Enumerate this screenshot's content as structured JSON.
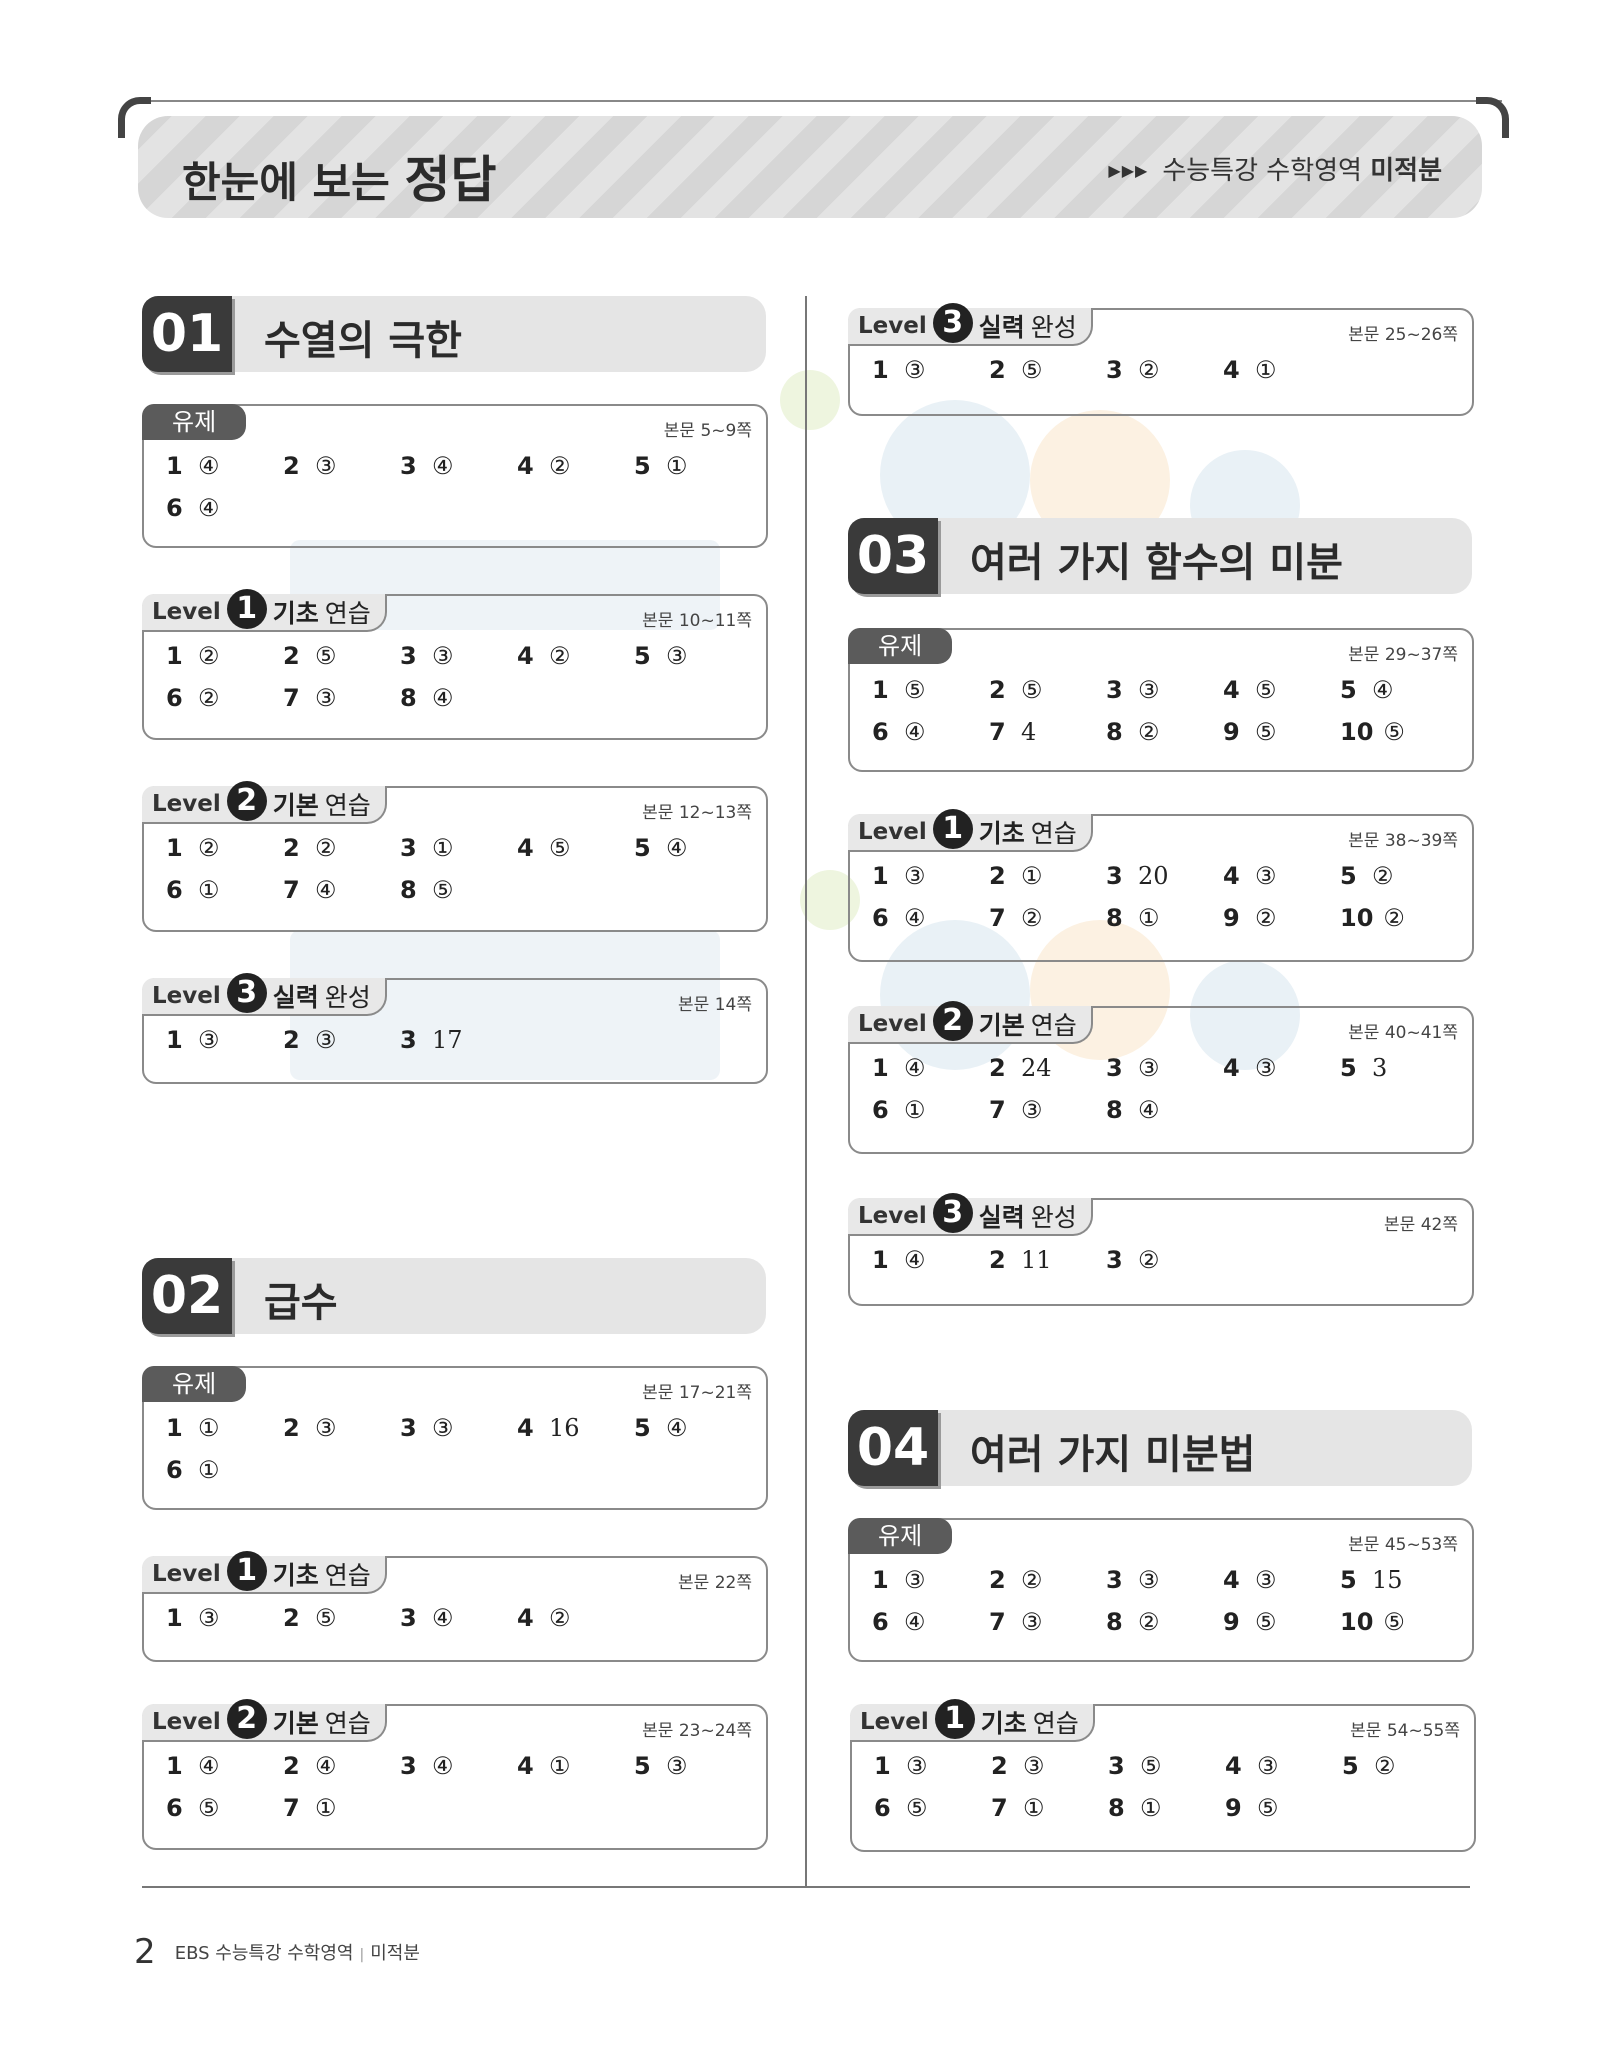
{
  "header": {
    "title_prefix": "한눈에 보는",
    "title_main": "정답",
    "subtitle_prefix": "수능특강 수학영역",
    "subtitle_main": "미적분"
  },
  "chapters": [
    {
      "num": "01",
      "title": "수열의 극한"
    },
    {
      "num": "02",
      "title": "급수"
    },
    {
      "num": "03",
      "title": "여러 가지 함수의 미분"
    },
    {
      "num": "04",
      "title": "여러 가지 미분법"
    }
  ],
  "labels": {
    "yuje": "유제",
    "level": "Level",
    "basic_a": "기초",
    "basic_b": "연습",
    "core_a": "기본",
    "core_b": "연습",
    "adv_a": "실력",
    "adv_b": "완성"
  },
  "boxes": [
    {
      "chapter": "01",
      "kind": "유제",
      "pages": "본문 5~9쪽",
      "answers": [
        [
          "1",
          "④"
        ],
        [
          "2",
          "③"
        ],
        [
          "3",
          "④"
        ],
        [
          "4",
          "②"
        ],
        [
          "5",
          "①"
        ],
        [
          "6",
          "④"
        ]
      ]
    },
    {
      "chapter": "01",
      "kind": "Level 1",
      "pages": "본문 10~11쪽",
      "answers": [
        [
          "1",
          "②"
        ],
        [
          "2",
          "⑤"
        ],
        [
          "3",
          "③"
        ],
        [
          "4",
          "②"
        ],
        [
          "5",
          "③"
        ],
        [
          "6",
          "②"
        ],
        [
          "7",
          "③"
        ],
        [
          "8",
          "④"
        ]
      ]
    },
    {
      "chapter": "01",
      "kind": "Level 2",
      "pages": "본문 12~13쪽",
      "answers": [
        [
          "1",
          "②"
        ],
        [
          "2",
          "②"
        ],
        [
          "3",
          "①"
        ],
        [
          "4",
          "⑤"
        ],
        [
          "5",
          "④"
        ],
        [
          "6",
          "①"
        ],
        [
          "7",
          "④"
        ],
        [
          "8",
          "⑤"
        ]
      ]
    },
    {
      "chapter": "01",
      "kind": "Level 3",
      "pages": "본문 14쪽",
      "answers": [
        [
          "1",
          "③"
        ],
        [
          "2",
          "③"
        ],
        [
          "3",
          "17"
        ]
      ]
    },
    {
      "chapter": "02",
      "kind": "유제",
      "pages": "본문 17~21쪽",
      "answers": [
        [
          "1",
          "①"
        ],
        [
          "2",
          "③"
        ],
        [
          "3",
          "③"
        ],
        [
          "4",
          "16"
        ],
        [
          "5",
          "④"
        ],
        [
          "6",
          "①"
        ]
      ]
    },
    {
      "chapter": "02",
      "kind": "Level 1",
      "pages": "본문 22쪽",
      "answers": [
        [
          "1",
          "③"
        ],
        [
          "2",
          "⑤"
        ],
        [
          "3",
          "④"
        ],
        [
          "4",
          "②"
        ]
      ]
    },
    {
      "chapter": "02",
      "kind": "Level 2",
      "pages": "본문 23~24쪽",
      "answers": [
        [
          "1",
          "④"
        ],
        [
          "2",
          "④"
        ],
        [
          "3",
          "④"
        ],
        [
          "4",
          "①"
        ],
        [
          "5",
          "③"
        ],
        [
          "6",
          "⑤"
        ],
        [
          "7",
          "①"
        ]
      ]
    },
    {
      "chapter": "02",
      "kind": "Level 3",
      "pages": "본문 25~26쪽",
      "answers": [
        [
          "1",
          "③"
        ],
        [
          "2",
          "⑤"
        ],
        [
          "3",
          "②"
        ],
        [
          "4",
          "①"
        ]
      ]
    },
    {
      "chapter": "03",
      "kind": "유제",
      "pages": "본문 29~37쪽",
      "answers": [
        [
          "1",
          "⑤"
        ],
        [
          "2",
          "⑤"
        ],
        [
          "3",
          "③"
        ],
        [
          "4",
          "⑤"
        ],
        [
          "5",
          "④"
        ],
        [
          "6",
          "④"
        ],
        [
          "7",
          "4"
        ],
        [
          "8",
          "②"
        ],
        [
          "9",
          "⑤"
        ],
        [
          "10",
          "⑤"
        ]
      ]
    },
    {
      "chapter": "03",
      "kind": "Level 1",
      "pages": "본문 38~39쪽",
      "answers": [
        [
          "1",
          "③"
        ],
        [
          "2",
          "①"
        ],
        [
          "3",
          "20"
        ],
        [
          "4",
          "③"
        ],
        [
          "5",
          "②"
        ],
        [
          "6",
          "④"
        ],
        [
          "7",
          "②"
        ],
        [
          "8",
          "①"
        ],
        [
          "9",
          "②"
        ],
        [
          "10",
          "②"
        ]
      ]
    },
    {
      "chapter": "03",
      "kind": "Level 2",
      "pages": "본문 40~41쪽",
      "answers": [
        [
          "1",
          "④"
        ],
        [
          "2",
          "24"
        ],
        [
          "3",
          "③"
        ],
        [
          "4",
          "③"
        ],
        [
          "5",
          "3"
        ],
        [
          "6",
          "①"
        ],
        [
          "7",
          "③"
        ],
        [
          "8",
          "④"
        ]
      ]
    },
    {
      "chapter": "03",
      "kind": "Level 3",
      "pages": "본문 42쪽",
      "answers": [
        [
          "1",
          "④"
        ],
        [
          "2",
          "11"
        ],
        [
          "3",
          "②"
        ]
      ]
    },
    {
      "chapter": "04",
      "kind": "유제",
      "pages": "본문 45~53쪽",
      "answers": [
        [
          "1",
          "③"
        ],
        [
          "2",
          "②"
        ],
        [
          "3",
          "③"
        ],
        [
          "4",
          "③"
        ],
        [
          "5",
          "15"
        ],
        [
          "6",
          "④"
        ],
        [
          "7",
          "③"
        ],
        [
          "8",
          "②"
        ],
        [
          "9",
          "⑤"
        ],
        [
          "10",
          "⑤"
        ]
      ]
    },
    {
      "chapter": "04",
      "kind": "Level 1",
      "pages": "본문 54~55쪽",
      "answers": [
        [
          "1",
          "③"
        ],
        [
          "2",
          "③"
        ],
        [
          "3",
          "⑤"
        ],
        [
          "4",
          "③"
        ],
        [
          "5",
          "②"
        ],
        [
          "6",
          "⑤"
        ],
        [
          "7",
          "①"
        ],
        [
          "8",
          "①"
        ],
        [
          "9",
          "⑤"
        ]
      ]
    }
  ],
  "footer": {
    "page_number": "2",
    "book": "EBS 수능특강 수학영역",
    "separator": "|",
    "subject": "미적분"
  },
  "colors": {
    "tab_dark": "#5b5b5b",
    "level_circle": "#222222",
    "chapter_num_bg": "#3a3a3a"
  }
}
